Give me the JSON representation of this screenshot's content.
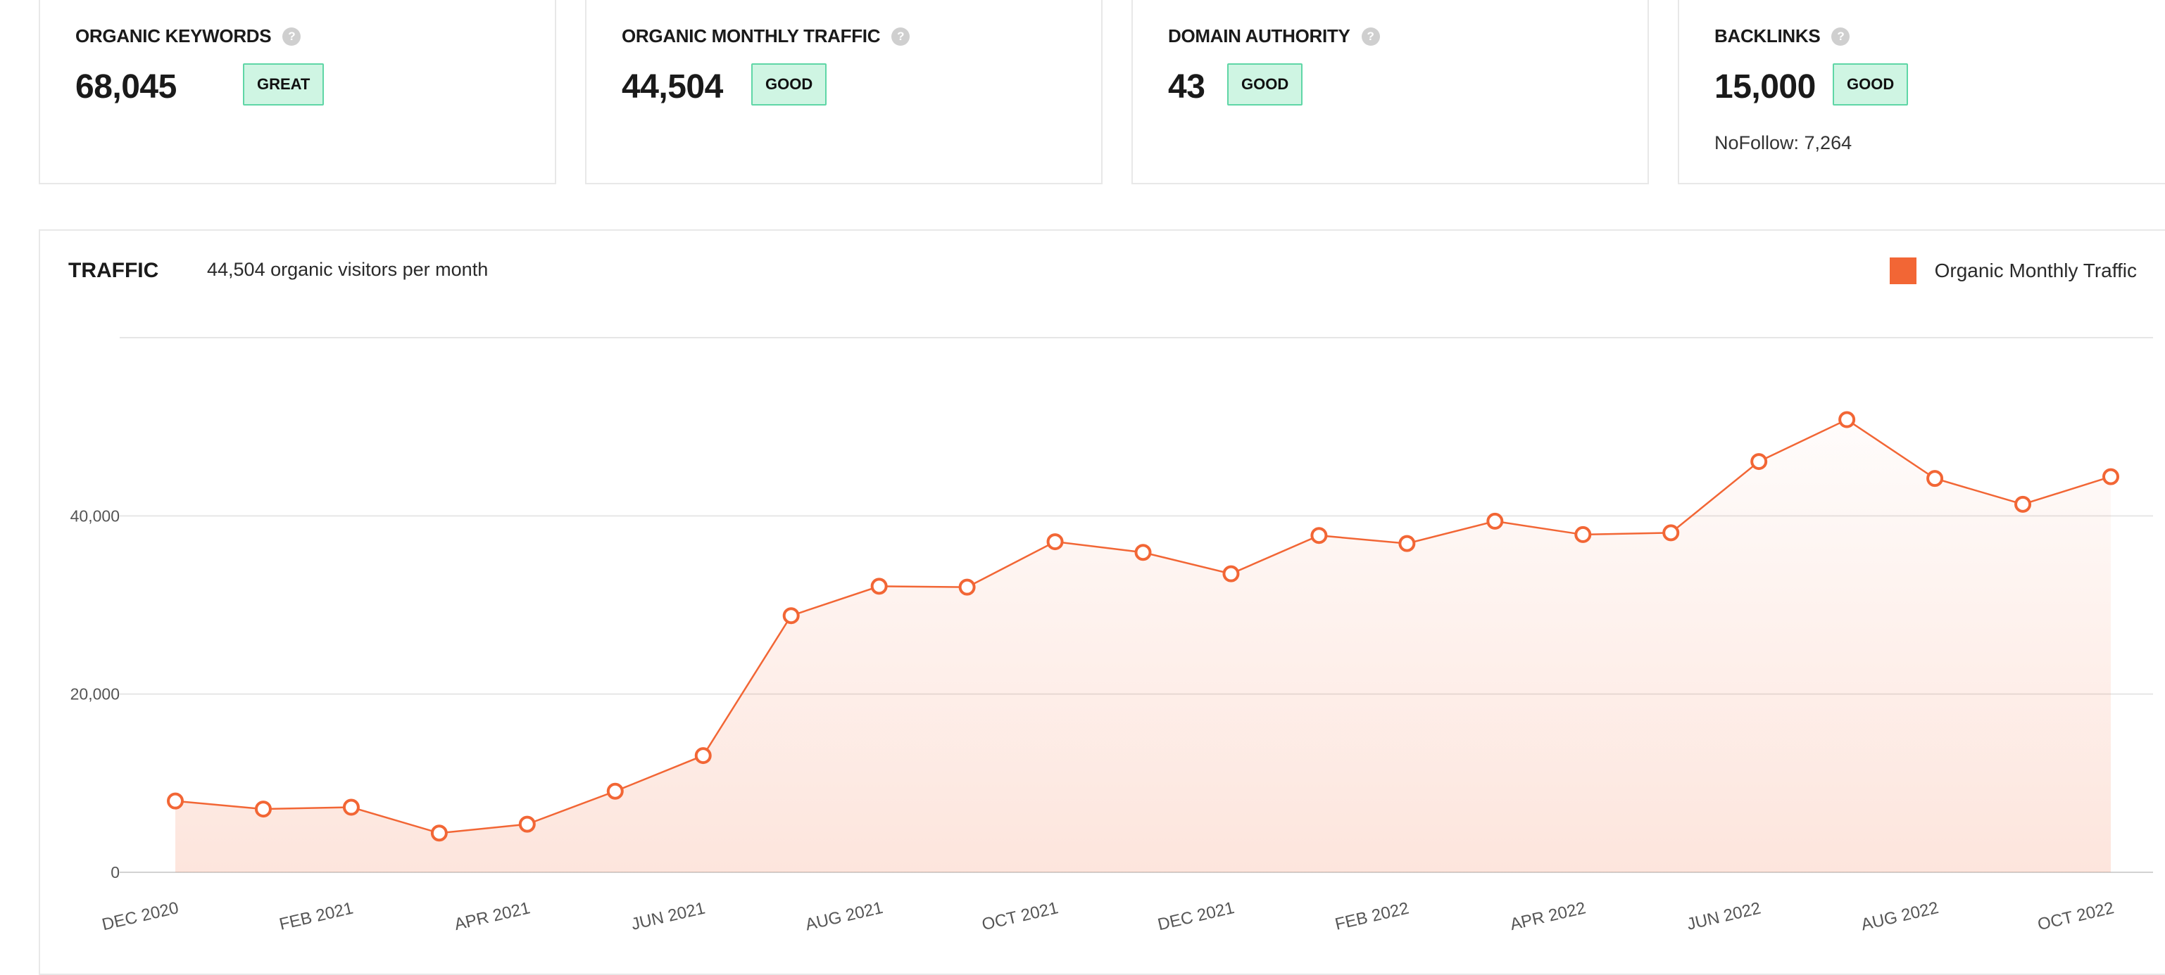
{
  "metrics": [
    {
      "label": "ORGANIC KEYWORDS",
      "value": "68,045",
      "badge": "GREAT",
      "help": "?"
    },
    {
      "label": "ORGANIC MONTHLY TRAFFIC",
      "value": "44,504",
      "badge": "GOOD",
      "help": "?"
    },
    {
      "label": "DOMAIN AUTHORITY",
      "value": "43",
      "badge": "GOOD",
      "help": "?"
    },
    {
      "label": "BACKLINKS",
      "value": "15,000",
      "badge": "GOOD",
      "help": "?",
      "sub": "NoFollow: 7,264"
    }
  ],
  "colors": {
    "accent": "#f26635",
    "badge_bg": "#cff5e3",
    "badge_border": "#5fd6a6"
  },
  "chart_data": {
    "type": "area",
    "title": "TRAFFIC",
    "subtitle": "44,504 organic visitors per month",
    "legend": "top-right",
    "ylim": [
      0,
      60000
    ],
    "yticks": [
      0,
      20000,
      40000
    ],
    "ytick_labels": [
      "0",
      "20,000",
      "40,000"
    ],
    "grid": true,
    "x": [
      "Dec 2020",
      "Jan 2021",
      "Feb 2021",
      "Mar 2021",
      "Apr 2021",
      "May 2021",
      "Jun 2021",
      "Jul 2021",
      "Aug 2021",
      "Sep 2021",
      "Oct 2021",
      "Nov 2021",
      "Dec 2021",
      "Jan 2022",
      "Feb 2022",
      "Mar 2022",
      "Apr 2022",
      "May 2022",
      "Jun 2022",
      "Jul 2022",
      "Aug 2022",
      "Sep 2022",
      "Oct 2022"
    ],
    "xtick_labels": [
      "DEC 2020",
      "FEB 2021",
      "APR 2021",
      "JUN 2021",
      "AUG 2021",
      "OCT 2021",
      "DEC 2021",
      "FEB 2022",
      "APR 2022",
      "JUN 2022",
      "AUG 2022",
      "OCT 2022"
    ],
    "series": [
      {
        "name": "Organic Monthly Traffic",
        "values": [
          8000,
          7100,
          7300,
          4400,
          5400,
          9100,
          13100,
          28800,
          32100,
          32000,
          37100,
          35900,
          33500,
          37800,
          36900,
          39400,
          37900,
          38100,
          46100,
          50800,
          44200,
          41300,
          44400
        ]
      }
    ]
  }
}
